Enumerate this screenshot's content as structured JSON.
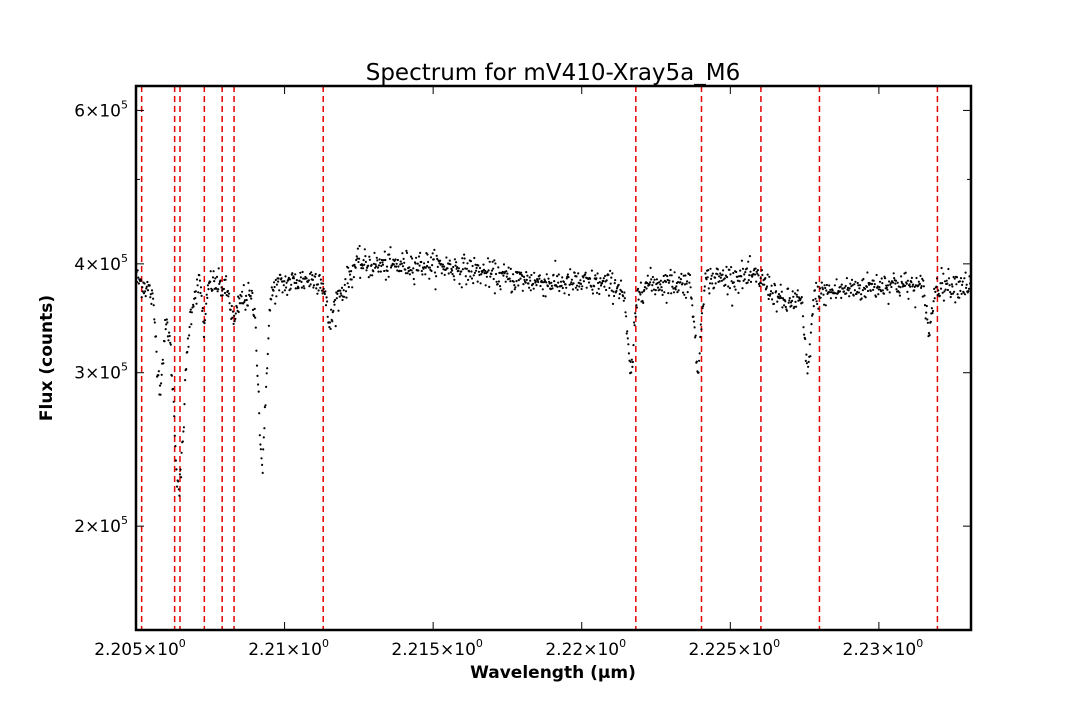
{
  "chart_data": {
    "type": "scatter",
    "title": "Spectrum for mV410-Xray5a_M6",
    "xlabel": "Wavelength (μm)",
    "ylabel": "Flux (counts)",
    "xlim": [
      2.205,
      2.2331
    ],
    "ylim": [
      152000,
      640000
    ],
    "yscale": "log",
    "x_ticks": [
      2.205,
      2.21,
      2.215,
      2.22,
      2.225,
      2.23
    ],
    "x_tick_labels": [
      {
        "mant": "2.205",
        "exp": "0"
      },
      {
        "mant": "2.21",
        "exp": "0"
      },
      {
        "mant": "2.215",
        "exp": "0"
      },
      {
        "mant": "2.22",
        "exp": "0"
      },
      {
        "mant": "2.225",
        "exp": "0"
      },
      {
        "mant": "2.23",
        "exp": "0"
      }
    ],
    "y_ticks": [
      200000,
      300000,
      400000,
      600000
    ],
    "y_tick_labels": [
      {
        "mant": "2",
        "exp": "5"
      },
      {
        "mant": "3",
        "exp": "5"
      },
      {
        "mant": "4",
        "exp": "5"
      },
      {
        "mant": "6",
        "exp": "5"
      }
    ],
    "y_minor_ticks": [
      500000
    ],
    "point_color": "#000000",
    "line_color": "#e60000",
    "vertical_lines": [
      2.20519,
      2.2063,
      2.20648,
      2.2073,
      2.2079,
      2.2083,
      2.2113,
      2.22182,
      2.22403,
      2.22603,
      2.228,
      2.23197
    ],
    "baseline": [
      [
        2.205,
        385000
      ],
      [
        2.2056,
        370000
      ],
      [
        2.2062,
        355000
      ],
      [
        2.2068,
        360000
      ],
      [
        2.2072,
        385000
      ],
      [
        2.2078,
        378000
      ],
      [
        2.2085,
        365000
      ],
      [
        2.2092,
        368000
      ],
      [
        2.2098,
        378000
      ],
      [
        2.2105,
        383000
      ],
      [
        2.2112,
        385000
      ],
      [
        2.2116,
        358000
      ],
      [
        2.212,
        375000
      ],
      [
        2.2124,
        400000
      ],
      [
        2.2135,
        398000
      ],
      [
        2.2145,
        400000
      ],
      [
        2.2155,
        397000
      ],
      [
        2.2165,
        392000
      ],
      [
        2.2175,
        385000
      ],
      [
        2.2185,
        382000
      ],
      [
        2.2195,
        380000
      ],
      [
        2.2205,
        380000
      ],
      [
        2.2215,
        376000
      ],
      [
        2.2225,
        380000
      ],
      [
        2.2235,
        381000
      ],
      [
        2.2245,
        385000
      ],
      [
        2.2255,
        387000
      ],
      [
        2.226,
        385000
      ],
      [
        2.2268,
        360000
      ],
      [
        2.2275,
        367000
      ],
      [
        2.2285,
        372000
      ],
      [
        2.2295,
        376000
      ],
      [
        2.2305,
        380000
      ],
      [
        2.2315,
        375000
      ],
      [
        2.2322,
        380000
      ],
      [
        2.2331,
        378000
      ]
    ],
    "absorption_lines": [
      {
        "center": 2.2058,
        "depth": 0.8,
        "width": 0.00012
      },
      {
        "center": 2.20645,
        "depth": 0.62,
        "width": 0.00018
      },
      {
        "center": 2.2073,
        "depth": 0.88,
        "width": 7e-05
      },
      {
        "center": 2.2083,
        "depth": 0.93,
        "width": 0.0001
      },
      {
        "center": 2.20925,
        "depth": 0.64,
        "width": 0.00013
      },
      {
        "center": 2.2115,
        "depth": 0.94,
        "width": 9e-05
      },
      {
        "center": 2.22165,
        "depth": 0.8,
        "width": 0.00012
      },
      {
        "center": 2.2239,
        "depth": 0.79,
        "width": 0.0001
      },
      {
        "center": 2.2276,
        "depth": 0.82,
        "width": 0.0001
      },
      {
        "center": 2.2317,
        "depth": 0.89,
        "width": 9e-05
      }
    ],
    "sample_step": 1.92e-05,
    "noise_fraction": 0.018
  }
}
